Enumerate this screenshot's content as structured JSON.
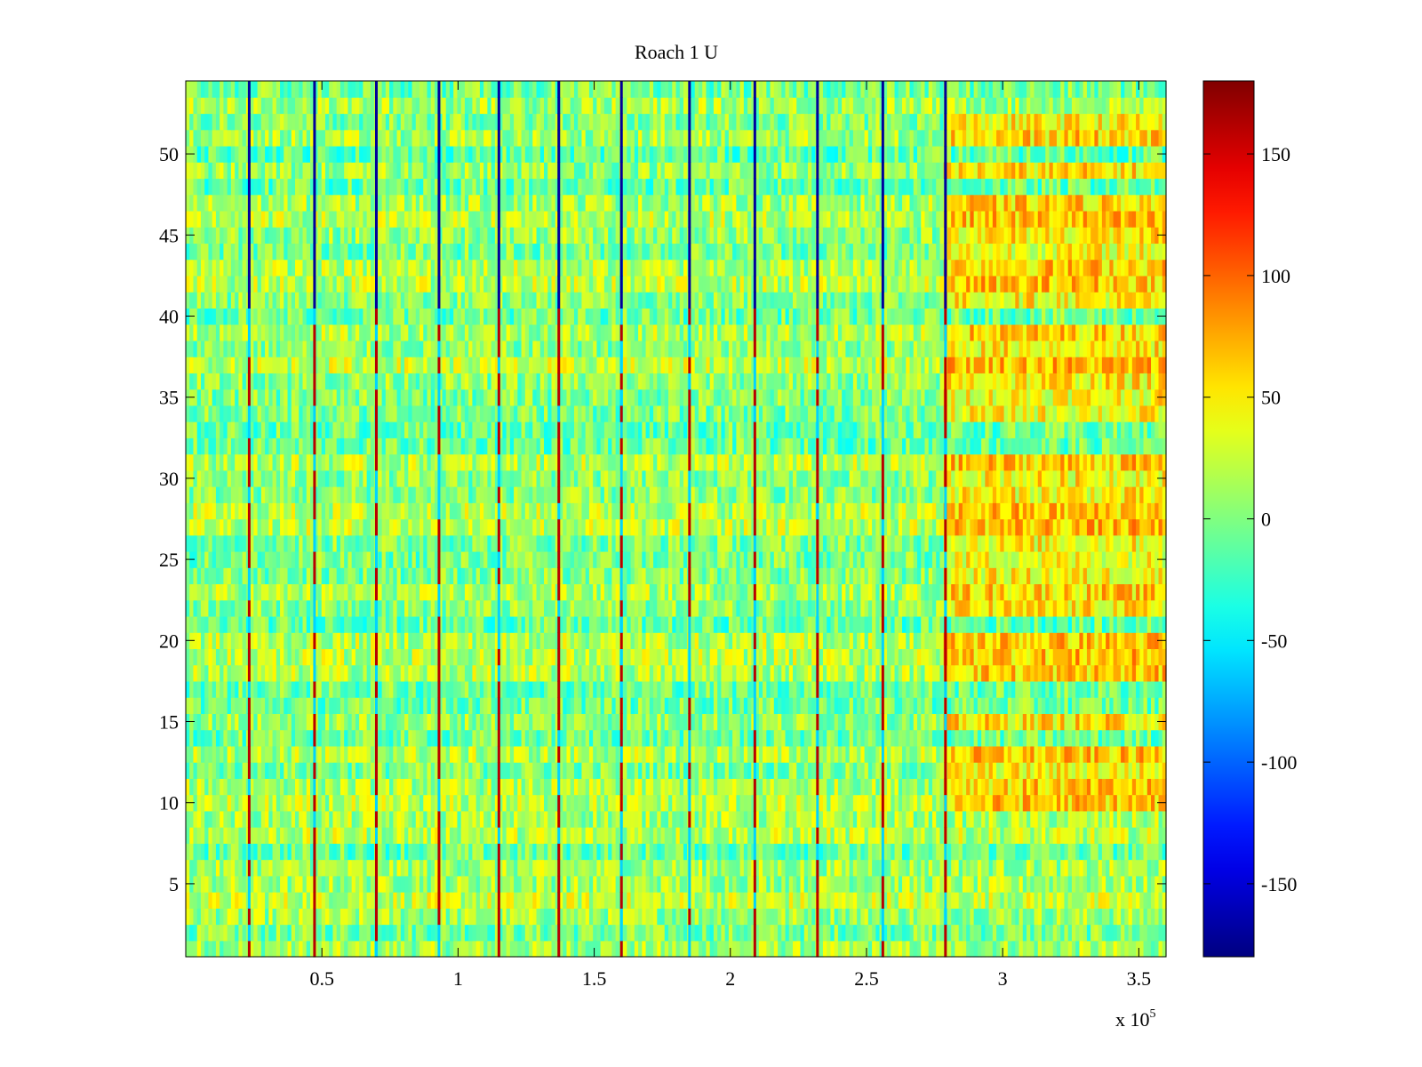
{
  "chart_data": {
    "type": "heatmap",
    "title": "Roach 1 U",
    "xlabel": "",
    "ylabel": "",
    "x_exponent_label": "x 10",
    "x_exponent": "5",
    "xlim": [
      0,
      3.6
    ],
    "ylim": [
      0.5,
      54.5
    ],
    "xticks": [
      0.5,
      1,
      1.5,
      2,
      2.5,
      3,
      3.5
    ],
    "xtick_labels": [
      "0.5",
      "1",
      "1.5",
      "2",
      "2.5",
      "3",
      "3.5"
    ],
    "yticks": [
      5,
      10,
      15,
      20,
      25,
      30,
      35,
      40,
      45,
      50
    ],
    "ytick_labels": [
      "5",
      "10",
      "15",
      "20",
      "25",
      "30",
      "35",
      "40",
      "45",
      "50"
    ],
    "rows": 54,
    "colormap": "jet",
    "clim": [
      -180,
      180
    ],
    "colorbar_ticks": [
      150,
      100,
      50,
      0,
      -50,
      -100,
      -150
    ],
    "colorbar_tick_labels": [
      "150",
      "100",
      "50",
      "0",
      "-50",
      "-100",
      "-150"
    ],
    "dark_column_positions": [
      0.233,
      0.473,
      0.7,
      0.93,
      1.15,
      1.37,
      1.6,
      1.85,
      2.09,
      2.32,
      2.56,
      2.79
    ],
    "warm_region": {
      "x_from": 2.78,
      "x_to": 3.6,
      "rows_from": 10,
      "rows_to": 52,
      "mean_value": 45
    },
    "background_mean_value": 5
  }
}
